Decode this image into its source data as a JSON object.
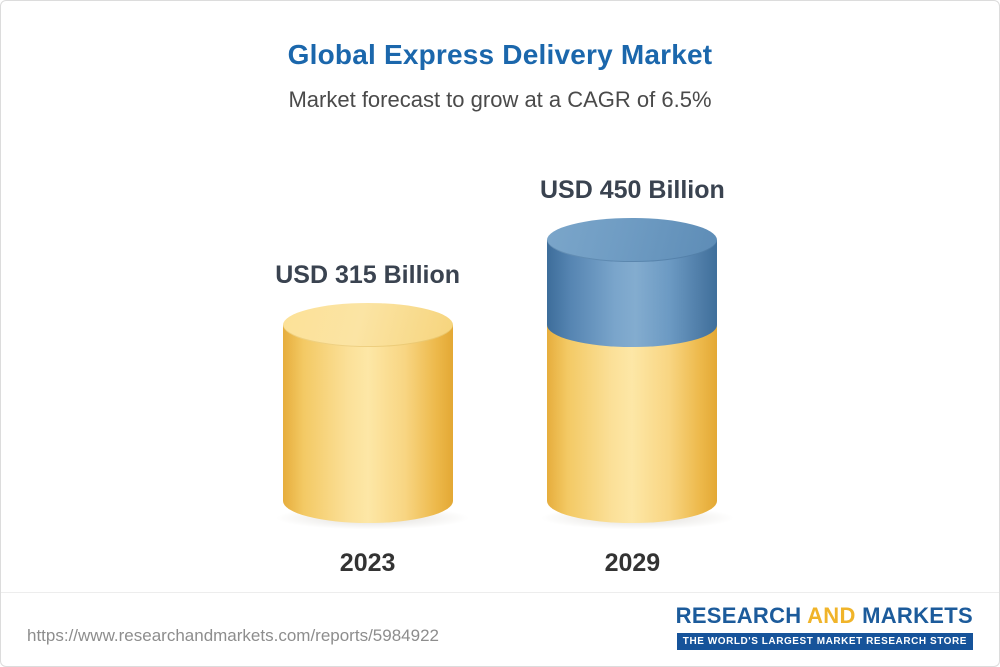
{
  "chart_data": {
    "type": "bar",
    "title": "Global Express Delivery Market",
    "subtitle": "Market forecast to grow at a CAGR of 6.5%",
    "categories": [
      "2023",
      "2029"
    ],
    "values": [
      315,
      450
    ],
    "unit": "USD Billion",
    "value_labels": [
      "USD 315 Billion",
      "USD 450 Billion"
    ],
    "cagr_percent": 6.5,
    "ylim": [
      0,
      450
    ],
    "legend": false,
    "grid": false,
    "bar_colors": {
      "base": "#f8d582",
      "growth": "#6f9cc3"
    },
    "accent_colors": {
      "title_blue": "#1b67ac",
      "label_dark": "#3a4350"
    }
  },
  "footer": {
    "url": "https://www.researchandmarkets.com/reports/5984922",
    "logo": {
      "word_research": "RESEARCH",
      "word_and": "AND",
      "word_markets": "MARKETS",
      "tagline": "THE WORLD'S LARGEST MARKET RESEARCH STORE"
    }
  }
}
